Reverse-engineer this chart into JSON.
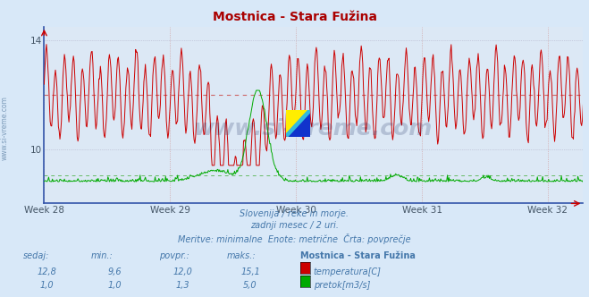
{
  "title": "Mostnica - Stara Fužina",
  "title_color": "#aa0000",
  "bg_color": "#d8e8f8",
  "plot_bg_color": "#dce8f5",
  "grid_color_h": "#b0b0c8",
  "grid_color_v": "#d0a0a0",
  "x_tick_labels": [
    "Week 28",
    "Week 29",
    "Week 30",
    "Week 31",
    "Week 32"
  ],
  "n_points": 720,
  "temp_avg": 12.0,
  "temp_color": "#cc0000",
  "temp_avg_color": "#cc6666",
  "flow_color": "#00aa00",
  "flow_avg_color": "#66bb66",
  "flow_avg": 1.3,
  "flow_spike_value": 5.0,
  "ylim_min": 8.0,
  "ylim_max": 14.5,
  "yticks": [
    10,
    14
  ],
  "watermark_text": "www.si-vreme.com",
  "footer_line1": "Slovenija / reke in morje.",
  "footer_line2": "zadnji mesec / 2 uri.",
  "footer_line3": "Meritve: minimalne  Enote: metrične  Črta: povprečje",
  "footer_color": "#4477aa",
  "table_header": [
    "sedaj:",
    "min.:",
    "povpr.:",
    "maks.:",
    "Mostnica - Stara Fužina"
  ],
  "table_row1": [
    "12,8",
    "9,6",
    "12,0",
    "15,1",
    "temperatura[C]"
  ],
  "table_row2": [
    "1,0",
    "1,0",
    "1,3",
    "5,0",
    "pretok[m3/s]"
  ],
  "table_color": "#4477aa",
  "temp_box_color": "#cc0000",
  "flow_box_color": "#00aa00",
  "week_x": [
    0,
    168,
    336,
    504,
    672
  ]
}
